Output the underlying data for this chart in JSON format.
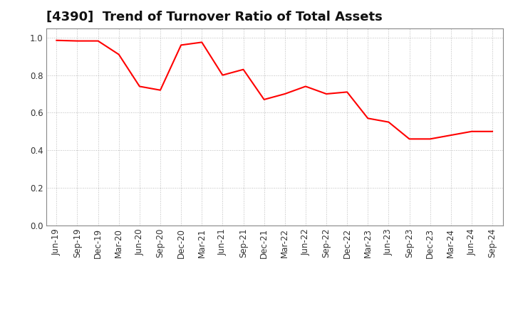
{
  "title": "[4390]  Trend of Turnover Ratio of Total Assets",
  "x_labels": [
    "Jun-19",
    "Sep-19",
    "Dec-19",
    "Mar-20",
    "Jun-20",
    "Sep-20",
    "Dec-20",
    "Mar-21",
    "Jun-21",
    "Sep-21",
    "Dec-21",
    "Mar-22",
    "Jun-22",
    "Sep-22",
    "Dec-22",
    "Mar-23",
    "Jun-23",
    "Sep-23",
    "Dec-23",
    "Mar-24",
    "Jun-24",
    "Sep-24"
  ],
  "values": [
    0.985,
    0.982,
    0.982,
    0.91,
    0.74,
    0.72,
    0.96,
    0.975,
    0.8,
    0.83,
    0.67,
    0.7,
    0.74,
    0.7,
    0.71,
    0.57,
    0.55,
    0.46,
    0.46,
    0.48,
    0.5,
    0.5
  ],
  "line_color": "#FF0000",
  "line_width": 1.5,
  "ylim": [
    0.0,
    1.05
  ],
  "yticks": [
    0.0,
    0.2,
    0.4,
    0.6,
    0.8,
    1.0
  ],
  "ytick_labels": [
    "0.0",
    "0.2",
    "0.4",
    "0.6",
    "0.8",
    "1.0"
  ],
  "background_color": "#FFFFFF",
  "plot_bg_color": "#FFFFFF",
  "grid_color": "#BBBBBB",
  "title_fontsize": 13,
  "tick_fontsize": 8.5
}
